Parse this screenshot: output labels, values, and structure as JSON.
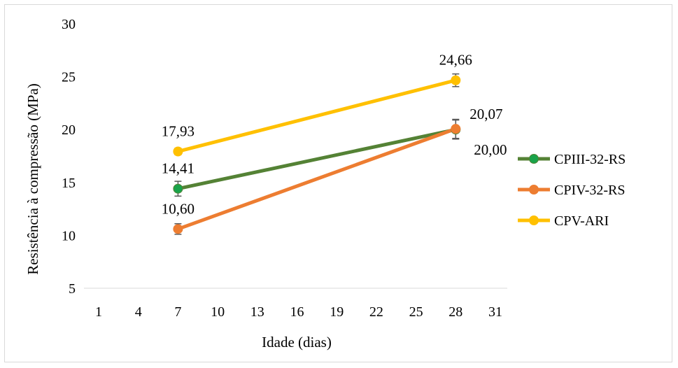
{
  "chart_data": {
    "type": "line",
    "title": "",
    "xlabel": "Idade (dias)",
    "ylabel": "Resistência à compressão (MPa)",
    "xlim": [
      1,
      31
    ],
    "ylim": [
      5,
      30
    ],
    "x_ticks": [
      "1",
      "4",
      "7",
      "10",
      "13",
      "16",
      "19",
      "22",
      "25",
      "28",
      "31"
    ],
    "y_ticks": [
      "5",
      "10",
      "15",
      "20",
      "25",
      "30"
    ],
    "grid": false,
    "legend_position": "right",
    "error_bars": true,
    "series": [
      {
        "name": "CPIII-32-RS",
        "color": "#548235",
        "marker_color": "#19a34a",
        "x": [
          7,
          28
        ],
        "y": [
          14.41,
          20.0
        ],
        "errors": [
          0.7,
          0.9
        ],
        "labels": [
          "14,41",
          "20,00"
        ]
      },
      {
        "name": "CPIV-32-RS",
        "color": "#ed7d31",
        "marker_color": "#ed7d31",
        "x": [
          7,
          28
        ],
        "y": [
          10.6,
          20.07
        ],
        "errors": [
          0.5,
          0.9
        ],
        "labels": [
          "10,60",
          "20,07"
        ]
      },
      {
        "name": "CPV-ARI",
        "color": "#ffc000",
        "marker_color": "#ffc000",
        "x": [
          7,
          28
        ],
        "y": [
          17.93,
          24.66
        ],
        "errors": [
          0.3,
          0.6
        ],
        "labels": [
          "17,93",
          "24,66"
        ]
      }
    ]
  }
}
